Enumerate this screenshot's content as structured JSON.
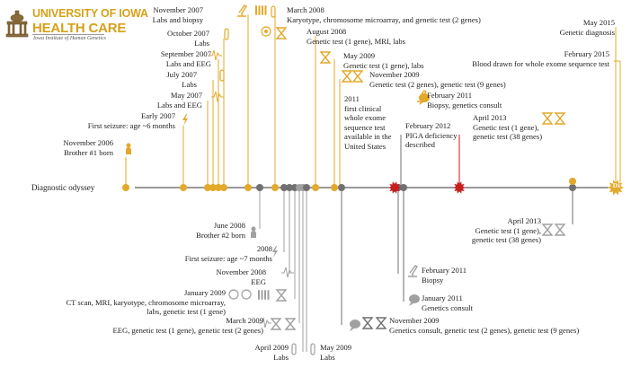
{
  "logo": {
    "line1": "UNIVERSITY OF IOWA",
    "line2": "HEALTH CARE",
    "line3": "Iowa Institute of Human Genetics"
  },
  "colors": {
    "gold": "#e3a92a",
    "gray": "#707070",
    "lightgray": "#a0a0a0",
    "red": "#c41e1e",
    "axis": "#333333"
  },
  "axis_label": "Diagnostic odyssey",
  "end_marker": "Dx",
  "upper_events": [
    {
      "key": "u1",
      "text": "November 2006\nBrother #1 born",
      "icon": "person-icon"
    },
    {
      "key": "u2",
      "text": "Early 2007\nFirst seizure: age ~6 months",
      "icon": "lightning-icon"
    },
    {
      "key": "u3",
      "text": "May 2007\nLabs and EEG",
      "icon": "eeg-wave-icon"
    },
    {
      "key": "u4",
      "text": "July 2007\nLabs",
      "icon": "test-tube-icon"
    },
    {
      "key": "u5",
      "text": "September 2007\nLabs and EEG",
      "icon": "eeg-wave-icon"
    },
    {
      "key": "u6",
      "text": "October 2007\nLabs",
      "icon": "test-tube-icon"
    },
    {
      "key": "u7",
      "text": "November 2007\nLabs and biopsy",
      "icon": "microscope-icon"
    },
    {
      "key": "u8",
      "text": "March 2008\nKaryotype, chromosome microarray, and genetic test (2 genes)",
      "icon": "chromosome-icon"
    },
    {
      "key": "u9",
      "text": "August 2008\nGenetic test (1 gene), MRI, labs",
      "icon": "hourglass-icon"
    },
    {
      "key": "u10",
      "text": "May 2009\nGenetic test (1 gene), labs",
      "icon": "hourglass-icon"
    },
    {
      "key": "u11",
      "text": "November 2009\nGenetic test (2 genes), genetic test (9 genes)",
      "icon": "hourglass-icon"
    },
    {
      "key": "u12",
      "text": "2011\nfirst clinical\nwhole exome\nsequence test\navailable in the\nUnited States",
      "icon": ""
    },
    {
      "key": "u13",
      "text": "February 2011\nBiopsy, genetics consult",
      "icon": "microscope-icon"
    },
    {
      "key": "u14",
      "text": "February 2012\nPIGA deficiency\ndescribed",
      "icon": ""
    },
    {
      "key": "u15",
      "text": "April 2013\nGenetic test (1 gene),\ngenetic test (38 genes)",
      "icon": "hourglass-icon"
    },
    {
      "key": "u16",
      "text": "May 2015\nGenetic diagnosis",
      "icon": ""
    },
    {
      "key": "u17",
      "text": "February 2015\nBlood drawn for whole exome sequence test",
      "icon": ""
    }
  ],
  "lower_events": [
    {
      "key": "l1",
      "text": "June 2008\nBrother #2 born",
      "icon": "person-icon"
    },
    {
      "key": "l2",
      "text": "2008\nFirst seizure: age ~7 months",
      "icon": "lightning-icon"
    },
    {
      "key": "l3",
      "text": "November 2008\nEEG",
      "icon": "eeg-wave-icon"
    },
    {
      "key": "l4",
      "text": "January 2009\nCT scan, MRI, karyotype, chromosome microarray,\nlabs, genetic test (1 gene)",
      "icon": "chromosome-icon"
    },
    {
      "key": "l5",
      "text": "March 2009\nEEG, genetic test (1 gene), genetic test (2 genes)",
      "icon": "hourglass-icon"
    },
    {
      "key": "l6",
      "text": "April 2009\nLabs",
      "icon": "test-tube-icon"
    },
    {
      "key": "l7",
      "text": "May 2009\nLabs",
      "icon": "test-tube-icon"
    },
    {
      "key": "l8",
      "text": "November 2009\nGenetics consult, genetic test (2 genes), genetic test (9 genes)",
      "icon": "hourglass-icon"
    },
    {
      "key": "l9",
      "text": "February 2011\nBiopsy",
      "icon": "microscope-icon"
    },
    {
      "key": "l10",
      "text": "January 2011\nGenetics consult",
      "icon": "speech-bubble-icon"
    },
    {
      "key": "l11",
      "text": "April 2013\nGenetic test (1 gene),\ngenetic test (38 genes)",
      "icon": "hourglass-icon"
    }
  ]
}
